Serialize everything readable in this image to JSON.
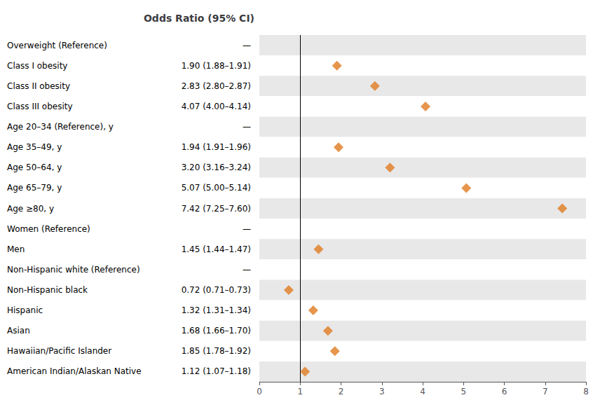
{
  "chart_data": {
    "type": "forest",
    "title": "Odds Ratio (95% CI)",
    "categories": [
      "Overweight (Reference)",
      "Class I obesity",
      "Class II obesity",
      "Class III obesity",
      "Age 20–34 (Reference), y",
      "Age 35–49, y",
      "Age 50–64, y",
      "Age 65–79, y",
      "Age ≥80, y",
      "Women (Reference)",
      "Men",
      "Non-Hispanic white (Reference)",
      "Non-Hispanic black",
      "Hispanic",
      "Asian",
      "Hawaiian/Pacific Islander",
      "American Indian/Alaskan Native"
    ],
    "values": [
      null,
      1.9,
      2.83,
      4.07,
      null,
      1.94,
      3.2,
      5.07,
      7.42,
      null,
      1.45,
      null,
      0.72,
      1.32,
      1.68,
      1.85,
      1.12
    ],
    "value_labels": [
      "—",
      "1.90 (1.88–1.91)",
      "2.83 (2.80–2.87)",
      "4.07 (4.00–4.14)",
      "—",
      "1.94 (1.91–1.96)",
      "3.20 (3.16–3.24)",
      "5.07 (5.00–5.14)",
      "7.42 (7.25–7.60)",
      "—",
      "1.45 (1.44–1.47)",
      "—",
      "0.72 (0.71–0.73)",
      "1.32 (1.31–1.34)",
      "1.68 (1.66–1.70)",
      "1.85 (1.78–1.92)",
      "1.12 (1.07–1.18)"
    ],
    "color": "#e07b20",
    "marker": "diamond",
    "reference_line": 1,
    "xlim": [
      0,
      8
    ],
    "xticks": [
      0,
      1,
      2,
      3,
      4,
      5,
      6,
      7,
      8
    ],
    "grid": false
  }
}
